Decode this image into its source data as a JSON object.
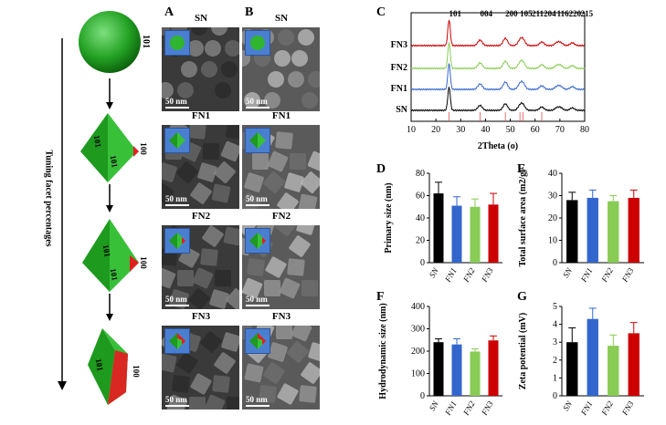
{
  "panels": {
    "A": "A",
    "B": "B",
    "C": "C",
    "D": "D",
    "E": "E",
    "F": "F",
    "G": "G"
  },
  "left_schematic": {
    "arrow_label": "Tuning facet percentages",
    "facet_101": "101",
    "facet_100": "100",
    "sphere_label": "101"
  },
  "microscopy": {
    "rows": [
      {
        "tem_label": "SN",
        "sem_label": "SN"
      },
      {
        "tem_label": "FN1",
        "sem_label": "FN1"
      },
      {
        "tem_label": "FN2",
        "sem_label": "FN2"
      },
      {
        "tem_label": "FN3",
        "sem_label": "FN3"
      }
    ],
    "scale_text": "50 nm"
  },
  "chart_data": [
    {
      "panel": "C",
      "type": "line",
      "xlabel": "2Theta (o)",
      "xlim": [
        10,
        80
      ],
      "x_ticks": [
        10,
        20,
        30,
        40,
        50,
        60,
        70,
        80
      ],
      "series": [
        {
          "name": "FN3",
          "color": "#cc0000"
        },
        {
          "name": "FN2",
          "color": "#88cc55"
        },
        {
          "name": "FN1",
          "color": "#3366cc"
        },
        {
          "name": "SN",
          "color": "#000000"
        }
      ],
      "peak_labels": [
        {
          "label": "101",
          "x": 25.3
        },
        {
          "label": "004",
          "x": 37.8
        },
        {
          "label": "200",
          "x": 48.0
        },
        {
          "label": "105",
          "x": 53.9
        },
        {
          "label": "211",
          "x": 55.1
        },
        {
          "label": "204",
          "x": 62.7
        },
        {
          "label": "116",
          "x": 68.8
        },
        {
          "label": "220",
          "x": 70.3
        },
        {
          "label": "215",
          "x": 75.0
        }
      ],
      "reference_lines": [
        25.3,
        37.8,
        48.0,
        53.9,
        55.1,
        62.7
      ]
    },
    {
      "panel": "D",
      "type": "bar",
      "ylabel": "Primary size (nm)",
      "categories": [
        "SN",
        "FN1",
        "FN2",
        "FN3"
      ],
      "values": [
        62,
        51,
        50,
        52
      ],
      "errors": [
        10,
        8,
        7,
        10
      ],
      "ylim": [
        0,
        80
      ],
      "y_ticks": [
        0,
        20,
        40,
        60,
        80
      ],
      "colors": [
        "#000000",
        "#3366cc",
        "#88cc55",
        "#cc0000"
      ]
    },
    {
      "panel": "E",
      "type": "bar",
      "ylabel": "Total surface area (m2/g)",
      "categories": [
        "SN",
        "FN1",
        "FN2",
        "FN3"
      ],
      "values": [
        28,
        29,
        27.5,
        29
      ],
      "errors": [
        3.5,
        3.5,
        2.5,
        3.5
      ],
      "ylim": [
        0,
        40
      ],
      "y_ticks": [
        0,
        10,
        20,
        30,
        40
      ],
      "colors": [
        "#000000",
        "#3366cc",
        "#88cc55",
        "#cc0000"
      ]
    },
    {
      "panel": "F",
      "type": "bar",
      "ylabel": "Hydrodynamic size (nm)",
      "categories": [
        "SN",
        "FN1",
        "FN2",
        "FN3"
      ],
      "values": [
        240,
        230,
        198,
        248
      ],
      "errors": [
        15,
        25,
        12,
        20
      ],
      "ylim": [
        0,
        400
      ],
      "y_ticks": [
        0,
        100,
        200,
        300,
        400
      ],
      "colors": [
        "#000000",
        "#3366cc",
        "#88cc55",
        "#cc0000"
      ]
    },
    {
      "panel": "G",
      "type": "bar",
      "ylabel": "Zeta potential (mV)",
      "categories": [
        "SN",
        "FN1",
        "FN2",
        "FN3"
      ],
      "values": [
        3.0,
        4.3,
        2.8,
        3.5
      ],
      "errors": [
        0.8,
        0.6,
        0.6,
        0.6
      ],
      "ylim": [
        0,
        5
      ],
      "y_ticks": [
        0,
        1,
        2,
        3,
        4,
        5
      ],
      "colors": [
        "#000000",
        "#3366cc",
        "#88cc55",
        "#cc0000"
      ]
    }
  ]
}
